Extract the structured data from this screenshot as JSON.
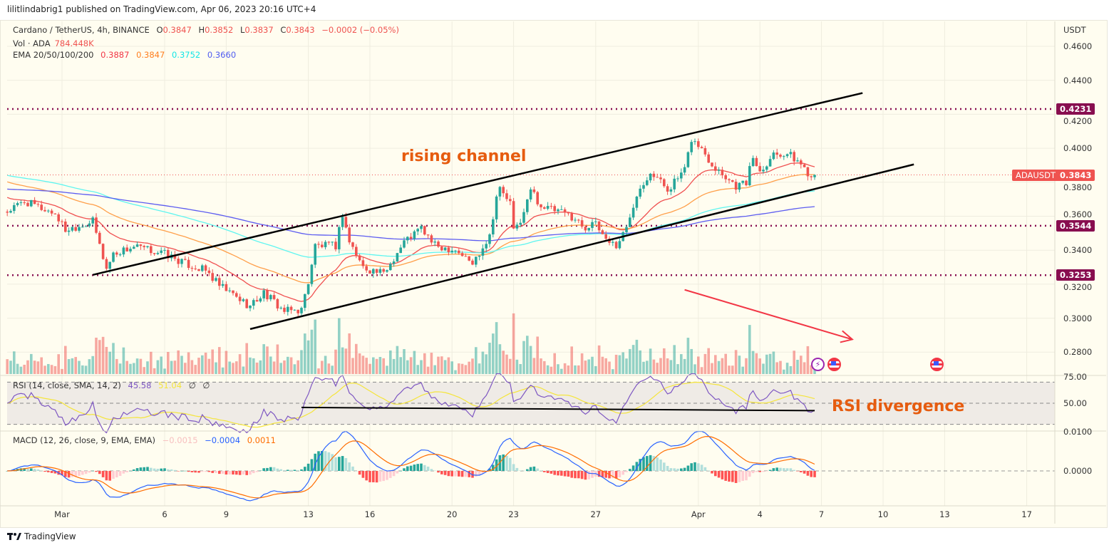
{
  "publisher": "lilitlindabrig1 published on TradingView.com, Apr 06, 2023 20:16 UTC+4",
  "footer_brand": "TradingView",
  "legend": {
    "symbol": "Cardano / TetherUS, 4h, BINANCE",
    "o_label": "O",
    "o": "0.3847",
    "h_label": "H",
    "h": "0.3852",
    "l_label": "L",
    "l": "0.3837",
    "c_label": "C",
    "c": "0.3843",
    "change": "−0.0002 (−0.05%)",
    "vol_label": "Vol · ADA",
    "vol": "784.448K",
    "ema_label": "EMA 20/50/100/200",
    "ema20": "0.3887",
    "ema50": "0.3847",
    "ema100": "0.3752",
    "ema200": "0.3660",
    "rsi_label": "RSI (14, close, SMA, 14, 2)",
    "rsi": "45.58",
    "rsi_ma": "51.04",
    "rsi_x1": "∅",
    "rsi_x2": "∅",
    "macd_label": "MACD (12, 26, close, 9, EMA, EMA)",
    "macd_hist": "−0.0015",
    "macd": "−0.0004",
    "macd_signal": "0.0011"
  },
  "colors": {
    "up": "#26a69a",
    "down": "#ef5350",
    "ema20": "#f05050",
    "ema50": "#ff9f4a",
    "ema100": "#5ff5f0",
    "ema200": "#5c5cf0",
    "rsi": "#7e57c2",
    "rsi_ma": "#f5e53a",
    "macd": "#2962ff",
    "signal": "#ff6d00",
    "level": "#880e4f",
    "annotation": "#e65c0f",
    "arrow": "#f23645"
  },
  "chart_data": {
    "type": "candlestick",
    "symbol": "ADAUSDT",
    "interval": "4h",
    "price_axis_unit": "USDT",
    "y_ticks": [
      "0.4600",
      "0.4400",
      "0.4200",
      "0.4000",
      "0.3800",
      "0.3600",
      "0.3400",
      "0.3200",
      "0.3000",
      "0.2800"
    ],
    "ylim": [
      0.27,
      0.467
    ],
    "x_ticks": [
      "Mar",
      "6",
      "9",
      "13",
      "16",
      "20",
      "23",
      "27",
      "Apr",
      "4",
      "7",
      "10",
      "13",
      "17"
    ],
    "x_tick_dates": [
      "2023-03-01",
      "2023-03-06",
      "2023-03-09",
      "2023-03-13",
      "2023-03-16",
      "2023-03-20",
      "2023-03-23",
      "2023-03-27",
      "2023-04-01",
      "2023-04-04",
      "2023-04-07",
      "2023-04-10",
      "2023-04-13",
      "2023-04-17"
    ],
    "close_path": [
      [
        "2023-02-26T08:00",
        0.3627
      ],
      [
        "2023-02-27T04:00",
        0.3686
      ],
      [
        "2023-02-28T16:00",
        0.3615
      ],
      [
        "2023-03-01T04:00",
        0.352
      ],
      [
        "2023-03-02T12:00",
        0.357
      ],
      [
        "2023-03-03T04:00",
        0.329
      ],
      [
        "2023-03-03T12:00",
        0.338
      ],
      [
        "2023-03-04T12:00",
        0.342
      ],
      [
        "2023-03-06T00:00",
        0.338
      ],
      [
        "2023-03-07T00:00",
        0.332
      ],
      [
        "2023-03-08T00:00",
        0.328
      ],
      [
        "2023-03-08T16:00",
        0.319
      ],
      [
        "2023-03-10T04:00",
        0.307
      ],
      [
        "2023-03-10T20:00",
        0.315
      ],
      [
        "2023-03-11T20:00",
        0.304
      ],
      [
        "2023-03-12T16:00",
        0.305
      ],
      [
        "2023-03-13T00:00",
        0.3216
      ],
      [
        "2023-03-13T08:00",
        0.3426
      ],
      [
        "2023-03-14T08:00",
        0.3426
      ],
      [
        "2023-03-14T16:00",
        0.3615
      ],
      [
        "2023-03-15T00:00",
        0.345
      ],
      [
        "2023-03-15T16:00",
        0.33
      ],
      [
        "2023-03-16T16:00",
        0.326
      ],
      [
        "2023-03-17T16:00",
        0.345
      ],
      [
        "2023-03-18T12:00",
        0.353
      ],
      [
        "2023-03-19T04:00",
        0.3426
      ],
      [
        "2023-03-20T04:00",
        0.3405
      ],
      [
        "2023-03-21T00:00",
        0.332
      ],
      [
        "2023-03-21T20:00",
        0.349
      ],
      [
        "2023-03-22T04:00",
        0.372
      ],
      [
        "2023-03-22T08:00",
        0.376
      ],
      [
        "2023-03-22T20:00",
        0.3677
      ],
      [
        "2023-03-23T00:00",
        0.351
      ],
      [
        "2023-03-23T12:00",
        0.3615
      ],
      [
        "2023-03-23T20:00",
        0.376
      ],
      [
        "2023-03-24T08:00",
        0.366
      ],
      [
        "2023-03-25T20:00",
        0.36
      ],
      [
        "2023-03-26T12:00",
        0.353
      ],
      [
        "2023-03-26T20:00",
        0.357
      ],
      [
        "2023-03-27T12:00",
        0.347
      ],
      [
        "2023-03-28T00:00",
        0.3426
      ],
      [
        "2023-03-28T12:00",
        0.353
      ],
      [
        "2023-03-29T00:00",
        0.374
      ],
      [
        "2023-03-29T16:00",
        0.3866
      ],
      [
        "2023-03-30T12:00",
        0.376
      ],
      [
        "2023-03-31T08:00",
        0.3866
      ],
      [
        "2023-03-31T16:00",
        0.4055
      ],
      [
        "2023-04-01T04:00",
        0.3993
      ],
      [
        "2023-04-01T16:00",
        0.3908
      ],
      [
        "2023-04-02T20:00",
        0.378
      ],
      [
        "2023-04-03T08:00",
        0.38
      ],
      [
        "2023-04-03T16:00",
        0.395
      ],
      [
        "2023-04-04T00:00",
        0.3866
      ],
      [
        "2023-04-04T16:00",
        0.397
      ],
      [
        "2023-04-05T08:00",
        0.397
      ],
      [
        "2023-04-06T00:00",
        0.3908
      ],
      [
        "2023-04-06T12:00",
        0.3833
      ],
      [
        "2023-04-06T16:00",
        0.3843
      ]
    ],
    "last_price": {
      "label": "ADAUSDT",
      "value": "0.3843"
    },
    "horizontal_levels": [
      "0.4231",
      "0.3544",
      "0.3253"
    ],
    "trendlines": {
      "upper_channel": [
        [
          "2023-03-02T12:00",
          0.3255
        ],
        [
          "2023-04-09T00:00",
          0.4325
        ]
      ],
      "lower_channel": [
        [
          "2023-03-10T04:00",
          0.2936
        ],
        [
          "2023-04-11T12:00",
          0.3905
        ]
      ],
      "arrow": [
        [
          "2023-03-31T08:00",
          0.3167
        ],
        [
          "2023-04-08T12:00",
          0.2875
        ]
      ],
      "rsi_support": [
        [
          "2023-03-12T16:00",
          46
        ],
        [
          "2023-04-06T16:00",
          43
        ]
      ]
    },
    "annotations": [
      "rising channel",
      "RSI divergence"
    ],
    "rsi_pane": {
      "y_ticks": [
        "75.00",
        "50.00"
      ],
      "band": [
        30,
        70
      ]
    },
    "macd_pane": {
      "y_ticks": [
        "0.0100",
        "0.0000"
      ]
    },
    "grid": true
  }
}
